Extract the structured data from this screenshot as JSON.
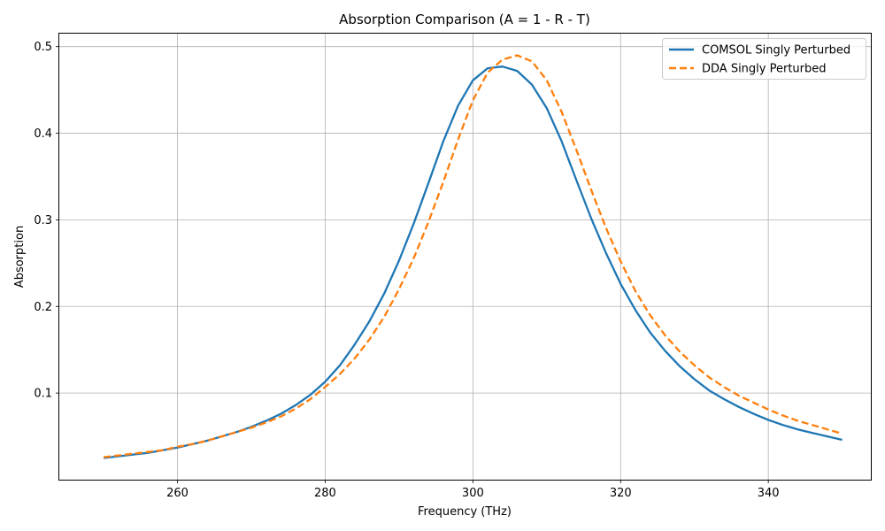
{
  "chart_data": {
    "type": "line",
    "title": "Absorption Comparison (A = 1 - R - T)",
    "xlabel": "Frequency (THz)",
    "ylabel": "Absorption",
    "xlim": [
      244,
      354
    ],
    "ylim": [
      0.0,
      0.515
    ],
    "xticks": [
      260,
      280,
      300,
      320,
      340
    ],
    "yticks": [
      0.1,
      0.2,
      0.3,
      0.4,
      0.5
    ],
    "xtick_labels": [
      "260",
      "280",
      "300",
      "320",
      "340"
    ],
    "ytick_labels": [
      "0.1",
      "0.2",
      "0.3",
      "0.4",
      "0.5"
    ],
    "grid": true,
    "legend_position": "upper right",
    "x": [
      250,
      252,
      254,
      256,
      258,
      260,
      262,
      264,
      266,
      268,
      270,
      272,
      274,
      276,
      278,
      280,
      282,
      284,
      286,
      288,
      290,
      292,
      294,
      296,
      298,
      300,
      302,
      304,
      306,
      308,
      310,
      312,
      314,
      316,
      318,
      320,
      322,
      324,
      326,
      328,
      330,
      332,
      334,
      336,
      338,
      340,
      342,
      344,
      346,
      348,
      350
    ],
    "series": [
      {
        "name": "COMSOL Singly Perturbed",
        "color": "#1f77b4",
        "style": "solid",
        "values": [
          0.025,
          0.027,
          0.029,
          0.031,
          0.034,
          0.037,
          0.041,
          0.045,
          0.05,
          0.055,
          0.061,
          0.068,
          0.076,
          0.086,
          0.098,
          0.113,
          0.132,
          0.156,
          0.183,
          0.215,
          0.253,
          0.296,
          0.343,
          0.391,
          0.432,
          0.461,
          0.475,
          0.477,
          0.472,
          0.456,
          0.429,
          0.391,
          0.346,
          0.302,
          0.262,
          0.226,
          0.196,
          0.17,
          0.149,
          0.131,
          0.116,
          0.103,
          0.093,
          0.084,
          0.076,
          0.069,
          0.063,
          0.058,
          0.054,
          0.05,
          0.046
        ]
      },
      {
        "name": "DDA Singly Perturbed",
        "color": "#ff7f0e",
        "style": "dashed",
        "values": [
          0.026,
          0.028,
          0.03,
          0.032,
          0.034,
          0.038,
          0.041,
          0.045,
          0.05,
          0.055,
          0.06,
          0.066,
          0.073,
          0.082,
          0.093,
          0.107,
          0.122,
          0.14,
          0.162,
          0.188,
          0.22,
          0.256,
          0.298,
          0.344,
          0.393,
          0.438,
          0.47,
          0.485,
          0.49,
          0.483,
          0.461,
          0.425,
          0.381,
          0.335,
          0.291,
          0.252,
          0.218,
          0.19,
          0.167,
          0.148,
          0.132,
          0.118,
          0.107,
          0.097,
          0.089,
          0.081,
          0.074,
          0.068,
          0.063,
          0.058,
          0.053
        ]
      }
    ]
  }
}
